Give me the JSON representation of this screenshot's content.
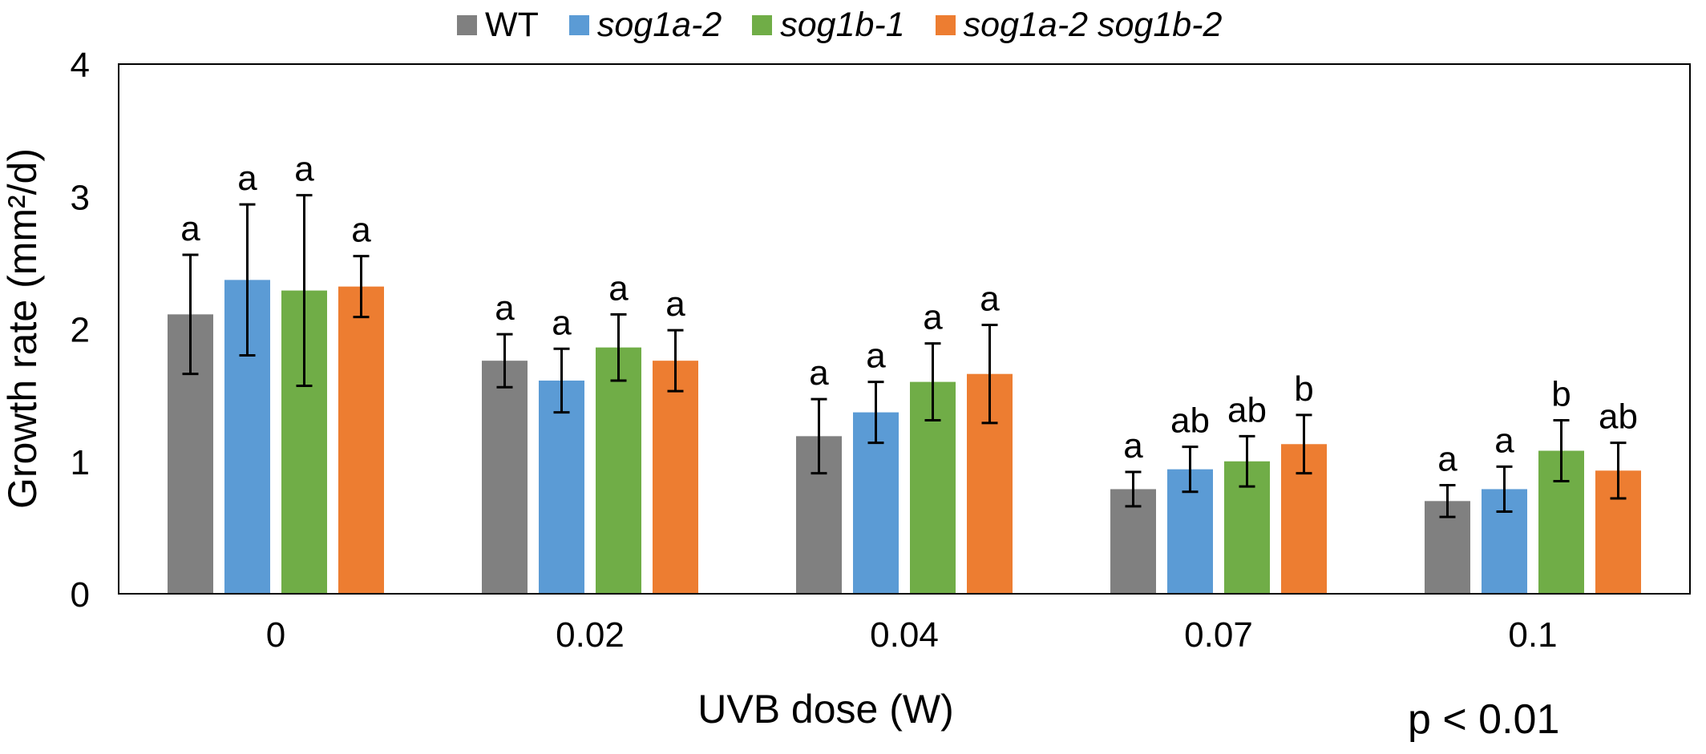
{
  "chart_data": {
    "type": "bar",
    "title": "",
    "xlabel": "UVB dose (W)",
    "ylabel": "Growth rate (mm²/d)",
    "ylim": [
      0,
      4
    ],
    "yticks": [
      "0",
      "1",
      "2",
      "3",
      "4"
    ],
    "categories": [
      "0",
      "0.02",
      "0.04",
      "0.07",
      "0.1"
    ],
    "legend_position": "top",
    "grid": false,
    "series": [
      {
        "name": "WT",
        "italic": false,
        "color": "#808080",
        "values": [
          2.11,
          1.76,
          1.19,
          0.79,
          0.7
        ],
        "errors": [
          0.45,
          0.2,
          0.28,
          0.13,
          0.12
        ],
        "letters": [
          "a",
          "a",
          "a",
          "a",
          "a"
        ]
      },
      {
        "name": "sog1a-2",
        "italic": true,
        "color": "#5b9bd5",
        "values": [
          2.37,
          1.61,
          1.37,
          0.94,
          0.79
        ],
        "errors": [
          0.57,
          0.24,
          0.23,
          0.17,
          0.17
        ],
        "letters": [
          "a",
          "a",
          "a",
          "ab",
          "a"
        ]
      },
      {
        "name": "sog1b-1",
        "italic": true,
        "color": "#70ad47",
        "values": [
          2.29,
          1.86,
          1.6,
          1.0,
          1.08
        ],
        "errors": [
          0.72,
          0.25,
          0.29,
          0.19,
          0.23
        ],
        "letters": [
          "a",
          "a",
          "a",
          "ab",
          "b"
        ]
      },
      {
        "name": "sog1a-2 sog1b-2",
        "italic": true,
        "color": "#ed7d31",
        "values": [
          2.32,
          1.76,
          1.66,
          1.13,
          0.93
        ],
        "errors": [
          0.23,
          0.23,
          0.37,
          0.22,
          0.21
        ],
        "letters": [
          "a",
          "a",
          "a",
          "b",
          "ab"
        ]
      }
    ],
    "annotation": "p < 0.01"
  }
}
